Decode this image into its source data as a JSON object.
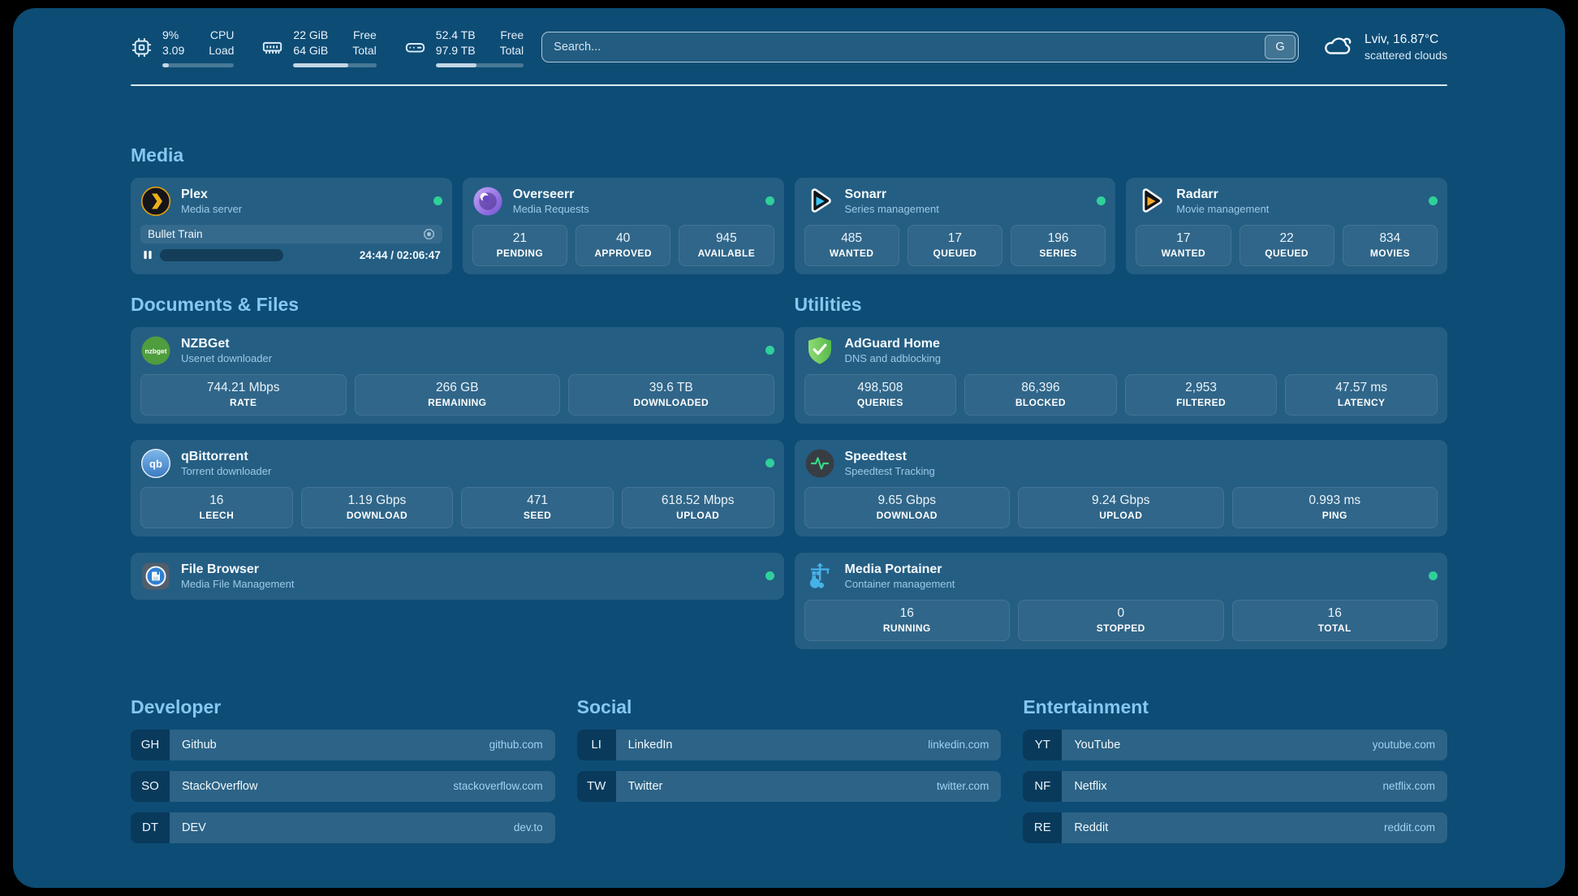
{
  "topbar": {
    "resources": [
      {
        "icon": "cpu-icon",
        "values": [
          "9%",
          "3.09"
        ],
        "labels": [
          "CPU",
          "Load"
        ],
        "progress_percent": 9
      },
      {
        "icon": "memory-icon",
        "values": [
          "22 GiB",
          "64 GiB"
        ],
        "labels": [
          "Free",
          "Total"
        ],
        "progress_percent": 66
      },
      {
        "icon": "disk-icon",
        "values": [
          "52.4 TB",
          "97.9 TB"
        ],
        "labels": [
          "Free",
          "Total"
        ],
        "progress_percent": 46
      }
    ],
    "search": {
      "placeholder": "Search...",
      "provider_button": "G"
    },
    "weather": {
      "location_temp": "Lviv, 16.87°C",
      "condition": "scattered clouds"
    }
  },
  "colors": {
    "status_online": "#2fd09a"
  },
  "sections": {
    "media": {
      "title": "Media",
      "cards": [
        {
          "app": "Plex",
          "description": "Media server",
          "logo": "plex-logo",
          "status": "online",
          "now_playing": {
            "title": "Bullet Train",
            "time": "24:44 / 02:06:47"
          }
        },
        {
          "app": "Overseerr",
          "description": "Media Requests",
          "logo": "overseerr-logo",
          "status": "online",
          "stats": [
            {
              "value": "21",
              "label": "PENDING"
            },
            {
              "value": "40",
              "label": "APPROVED"
            },
            {
              "value": "945",
              "label": "AVAILABLE"
            }
          ]
        },
        {
          "app": "Sonarr",
          "description": "Series management",
          "logo": "sonarr-logo",
          "status": "online",
          "stats": [
            {
              "value": "485",
              "label": "WANTED"
            },
            {
              "value": "17",
              "label": "QUEUED"
            },
            {
              "value": "196",
              "label": "SERIES"
            }
          ]
        },
        {
          "app": "Radarr",
          "description": "Movie management",
          "logo": "radarr-logo",
          "status": "online",
          "stats": [
            {
              "value": "17",
              "label": "WANTED"
            },
            {
              "value": "22",
              "label": "QUEUED"
            },
            {
              "value": "834",
              "label": "MOVIES"
            }
          ]
        }
      ]
    },
    "documents": {
      "title": "Documents & Files",
      "cards": [
        {
          "app": "NZBGet",
          "description": "Usenet downloader",
          "logo": "nzbget-logo",
          "status": "online",
          "stats": [
            {
              "value": "744.21 Mbps",
              "label": "RATE"
            },
            {
              "value": "266 GB",
              "label": "REMAINING"
            },
            {
              "value": "39.6 TB",
              "label": "DOWNLOADED"
            }
          ]
        },
        {
          "app": "qBittorrent",
          "description": "Torrent downloader",
          "logo": "qbittorrent-logo",
          "status": "online",
          "stats": [
            {
              "value": "16",
              "label": "LEECH"
            },
            {
              "value": "1.19 Gbps",
              "label": "DOWNLOAD"
            },
            {
              "value": "471",
              "label": "SEED"
            },
            {
              "value": "618.52 Mbps",
              "label": "UPLOAD"
            }
          ]
        },
        {
          "app": "File Browser",
          "description": "Media File Management",
          "logo": "filebrowser-logo",
          "status": "online"
        }
      ]
    },
    "utilities": {
      "title": "Utilities",
      "cards": [
        {
          "app": "AdGuard Home",
          "description": "DNS and adblocking",
          "logo": "adguard-logo",
          "stats": [
            {
              "value": "498,508",
              "label": "QUERIES"
            },
            {
              "value": "86,396",
              "label": "BLOCKED"
            },
            {
              "value": "2,953",
              "label": "FILTERED"
            },
            {
              "value": "47.57 ms",
              "label": "LATENCY"
            }
          ]
        },
        {
          "app": "Speedtest",
          "description": "Speedtest Tracking",
          "logo": "speedtest-logo",
          "stats": [
            {
              "value": "9.65 Gbps",
              "label": "DOWNLOAD"
            },
            {
              "value": "9.24 Gbps",
              "label": "UPLOAD"
            },
            {
              "value": "0.993 ms",
              "label": "PING"
            }
          ]
        },
        {
          "app": "Media Portainer",
          "description": "Container management",
          "logo": "portainer-logo",
          "status": "online",
          "stats": [
            {
              "value": "16",
              "label": "RUNNING"
            },
            {
              "value": "0",
              "label": "STOPPED"
            },
            {
              "value": "16",
              "label": "TOTAL"
            }
          ]
        }
      ]
    }
  },
  "bookmarks": [
    {
      "title": "Developer",
      "links": [
        {
          "abbr": "GH",
          "name": "Github",
          "url": "github.com"
        },
        {
          "abbr": "SO",
          "name": "StackOverflow",
          "url": "stackoverflow.com"
        },
        {
          "abbr": "DT",
          "name": "DEV",
          "url": "dev.to"
        }
      ]
    },
    {
      "title": "Social",
      "links": [
        {
          "abbr": "LI",
          "name": "LinkedIn",
          "url": "linkedin.com"
        },
        {
          "abbr": "TW",
          "name": "Twitter",
          "url": "twitter.com"
        }
      ]
    },
    {
      "title": "Entertainment",
      "links": [
        {
          "abbr": "YT",
          "name": "YouTube",
          "url": "youtube.com"
        },
        {
          "abbr": "NF",
          "name": "Netflix",
          "url": "netflix.com"
        },
        {
          "abbr": "RE",
          "name": "Reddit",
          "url": "reddit.com"
        }
      ]
    }
  ]
}
